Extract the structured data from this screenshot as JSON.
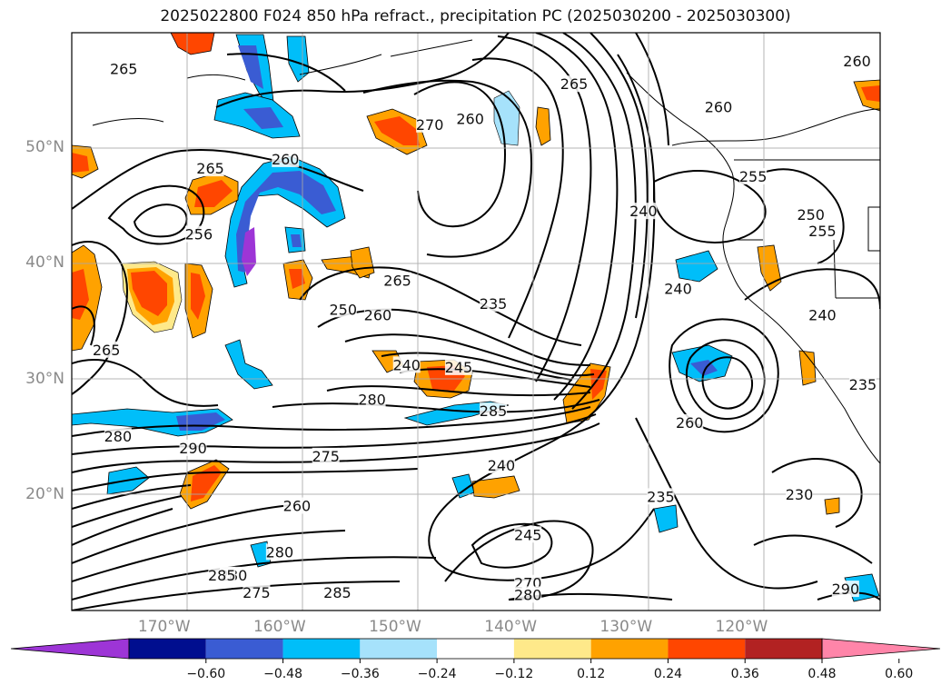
{
  "title": "2025022800 F024 850 hPa refract., precipitation PC (2025030200 - 2025030300)",
  "map": {
    "lat_labels": [
      {
        "label": "50°N",
        "lat": 50
      },
      {
        "label": "40°N",
        "lat": 40
      },
      {
        "label": "30°N",
        "lat": 30
      },
      {
        "label": "20°N",
        "lat": 20
      }
    ],
    "lon_labels": [
      {
        "label": "170°W",
        "lon": -170
      },
      {
        "label": "160°W",
        "lon": -160
      },
      {
        "label": "150°W",
        "lon": -150
      },
      {
        "label": "140°W",
        "lon": -140
      },
      {
        "label": "130°W",
        "lon": -130
      },
      {
        "label": "120°W",
        "lon": -120
      }
    ],
    "extent": {
      "lon_min": -178,
      "lon_max": -108,
      "lat_min": 10,
      "lat_max": 60
    },
    "contour_labels": [
      {
        "text": "265",
        "lon": -173.5,
        "lat": 56.8
      },
      {
        "text": "270",
        "lon": -147,
        "lat": 52.0
      },
      {
        "text": "260",
        "lon": -143.5,
        "lat": 52.5
      },
      {
        "text": "265",
        "lon": -134.5,
        "lat": 55.5
      },
      {
        "text": "260",
        "lon": -122,
        "lat": 53.5
      },
      {
        "text": "260",
        "lon": -110,
        "lat": 57.5
      },
      {
        "text": "265",
        "lon": -166,
        "lat": 48.2
      },
      {
        "text": "260",
        "lon": -159.5,
        "lat": 49.0
      },
      {
        "text": "255",
        "lon": -119,
        "lat": 47.5
      },
      {
        "text": "256",
        "lon": -167,
        "lat": 42.5
      },
      {
        "text": "240",
        "lon": -128.5,
        "lat": 44.5
      },
      {
        "text": "250",
        "lon": -114,
        "lat": 44.2
      },
      {
        "text": "255",
        "lon": -113,
        "lat": 42.8
      },
      {
        "text": "265",
        "lon": -149.8,
        "lat": 38.5
      },
      {
        "text": "240",
        "lon": -125.5,
        "lat": 37.8
      },
      {
        "text": "240",
        "lon": -113,
        "lat": 35.5
      },
      {
        "text": "250",
        "lon": -154.5,
        "lat": 36.0
      },
      {
        "text": "260",
        "lon": -151.5,
        "lat": 35.5
      },
      {
        "text": "235",
        "lon": -141.5,
        "lat": 36.5
      },
      {
        "text": "265",
        "lon": -175,
        "lat": 32.5
      },
      {
        "text": "240",
        "lon": -149,
        "lat": 31.2
      },
      {
        "text": "245",
        "lon": -144.5,
        "lat": 31.0
      },
      {
        "text": "280",
        "lon": -152,
        "lat": 28.2
      },
      {
        "text": "285",
        "lon": -141.5,
        "lat": 27.2
      },
      {
        "text": "235",
        "lon": -109.5,
        "lat": 29.5
      },
      {
        "text": "260",
        "lon": -124.5,
        "lat": 26.2
      },
      {
        "text": "280",
        "lon": -174,
        "lat": 25.0
      },
      {
        "text": "290",
        "lon": -167.5,
        "lat": 24.0
      },
      {
        "text": "275",
        "lon": -156,
        "lat": 23.3
      },
      {
        "text": "240",
        "lon": -140.8,
        "lat": 22.5
      },
      {
        "text": "235",
        "lon": -127,
        "lat": 19.8
      },
      {
        "text": "230",
        "lon": -115,
        "lat": 20.0
      },
      {
        "text": "260",
        "lon": -158.5,
        "lat": 19.0
      },
      {
        "text": "245",
        "lon": -138.5,
        "lat": 16.5
      },
      {
        "text": "280",
        "lon": -160,
        "lat": 15.0
      },
      {
        "text": "280",
        "lon": -164,
        "lat": 13.0
      },
      {
        "text": "285",
        "lon": -165,
        "lat": 13.0
      },
      {
        "text": "275",
        "lon": -162,
        "lat": 11.5
      },
      {
        "text": "285",
        "lon": -155,
        "lat": 11.5
      },
      {
        "text": "270",
        "lon": -138.5,
        "lat": 12.3
      },
      {
        "text": "280",
        "lon": -138.5,
        "lat": 11.3
      },
      {
        "text": "290",
        "lon": -111,
        "lat": 11.8
      }
    ]
  },
  "colorbar": {
    "colors": [
      "#9d35d6",
      "#000e8f",
      "#3a5cd3",
      "#00bef9",
      "#a6e2fb",
      "#ffffff",
      "#fee98a",
      "#ffa200",
      "#ff4600",
      "#b22222",
      "#ff85a9"
    ],
    "tick_labels": [
      "−0.60",
      "−0.48",
      "−0.36",
      "−0.24",
      "−0.12",
      "0.12",
      "0.24",
      "0.36",
      "0.48",
      "0.60"
    ]
  }
}
